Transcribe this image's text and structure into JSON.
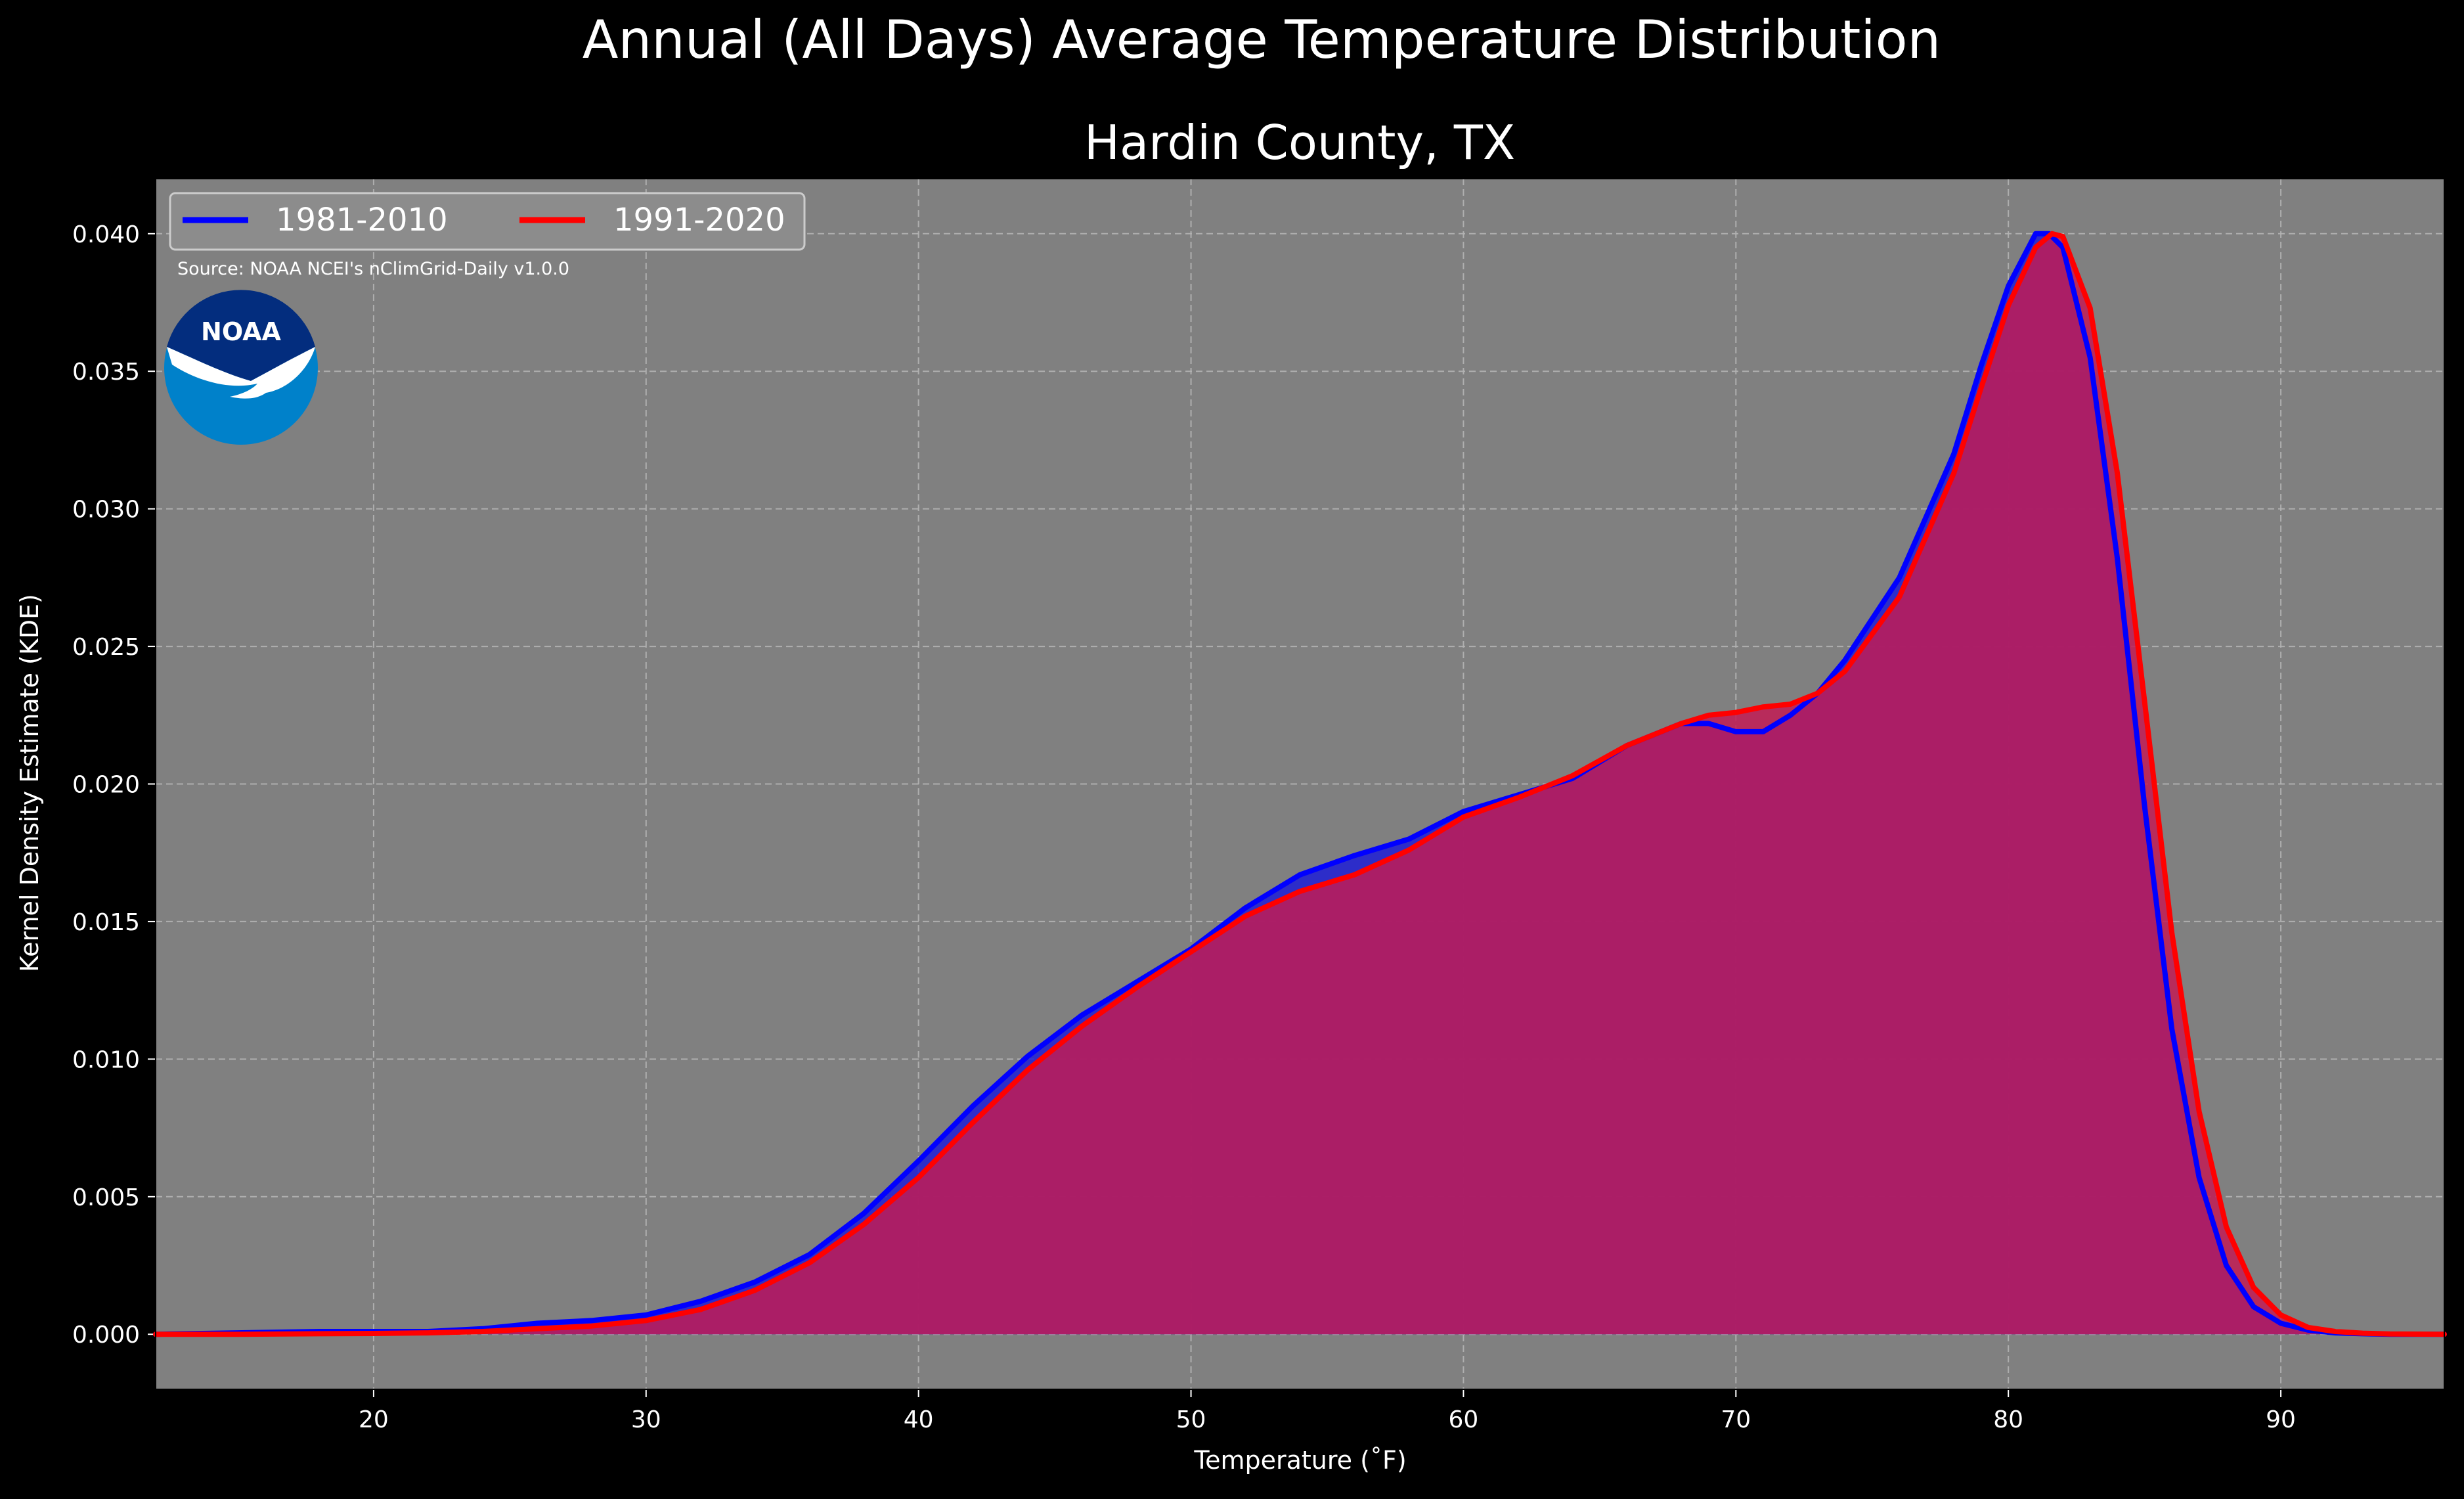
{
  "figure": {
    "suptitle": "Annual (All Days) Average Temperature Distribution",
    "background_color": "#000000",
    "plot_background_color": "#808080",
    "text_color": "#ffffff",
    "source_note": "Source: NOAA NCEI's nClimGrid-Daily v1.0.0",
    "logo": {
      "icon": "noaa-logo-icon",
      "text": "NOAA",
      "outer_color": "#0081CA",
      "inner_color": "#032D7E",
      "wing_color": "#ffffff"
    }
  },
  "chart_data": {
    "type": "area",
    "title": "Hardin County, TX",
    "xlabel": "Temperature ($^\\circ$F)",
    "xlabel_display": "Temperature (˚F)",
    "ylabel": "Kernel Density Estimate (KDE)",
    "xlim": [
      12,
      96
    ],
    "ylim": [
      -0.002,
      0.042
    ],
    "xticks": [
      20,
      30,
      40,
      50,
      60,
      70,
      80,
      90
    ],
    "xtick_labels": [
      "20",
      "30",
      "40",
      "50",
      "60",
      "70",
      "80",
      "90"
    ],
    "yticks": [
      0.0,
      0.005,
      0.01,
      0.015,
      0.02,
      0.025,
      0.03,
      0.035,
      0.04
    ],
    "ytick_labels": [
      "0.000",
      "0.005",
      "0.010",
      "0.015",
      "0.020",
      "0.025",
      "0.030",
      "0.035",
      "0.040"
    ],
    "grid": true,
    "legend": {
      "location": "top-left",
      "columns": 2
    },
    "series": [
      {
        "name": "1981-2010",
        "color": "#0000ff",
        "fill_color": "#1f1fd6",
        "x": [
          12,
          15,
          18,
          20,
          22,
          24,
          26,
          28,
          30,
          32,
          34,
          36,
          38,
          40,
          42,
          44,
          46,
          48,
          50,
          52,
          54,
          56,
          58,
          60,
          62,
          64,
          66,
          68,
          69,
          70,
          71,
          72,
          73,
          74,
          76,
          78,
          79,
          80,
          81,
          81.5,
          82,
          83,
          84,
          85,
          86,
          87,
          88,
          89,
          90,
          91,
          92,
          93,
          94,
          96
        ],
        "y": [
          0.0,
          5e-05,
          0.0001,
          0.0001,
          0.0001,
          0.0002,
          0.0004,
          0.0005,
          0.0007,
          0.0012,
          0.0019,
          0.0029,
          0.0044,
          0.0063,
          0.0083,
          0.0101,
          0.0116,
          0.0128,
          0.014,
          0.0155,
          0.0167,
          0.0174,
          0.018,
          0.019,
          0.0196,
          0.0202,
          0.0214,
          0.0222,
          0.0222,
          0.0219,
          0.0219,
          0.0225,
          0.0233,
          0.0245,
          0.0275,
          0.032,
          0.0352,
          0.0381,
          0.04,
          0.04,
          0.0395,
          0.0355,
          0.0282,
          0.0192,
          0.0111,
          0.0057,
          0.0025,
          0.001,
          0.0004,
          0.00015,
          5e-05,
          2e-05,
          0.0,
          0.0
        ]
      },
      {
        "name": "1991-2020",
        "color": "#ff0000",
        "fill_color": "#c21c55",
        "x": [
          12,
          15,
          18,
          20,
          22,
          24,
          26,
          28,
          30,
          32,
          34,
          36,
          38,
          40,
          42,
          44,
          46,
          48,
          50,
          52,
          54,
          56,
          58,
          60,
          62,
          64,
          66,
          68,
          69,
          70,
          71,
          72,
          73,
          74,
          76,
          78,
          79,
          80,
          81,
          81.6,
          82,
          83,
          84,
          85,
          86,
          87,
          88,
          89,
          90,
          91,
          92,
          93,
          94,
          96
        ],
        "y": [
          0.0,
          0.0,
          2e-05,
          3e-05,
          5e-05,
          0.0001,
          0.0002,
          0.0003,
          0.0005,
          0.0009,
          0.0016,
          0.0026,
          0.004,
          0.0057,
          0.0077,
          0.0096,
          0.0112,
          0.0126,
          0.0139,
          0.0152,
          0.0161,
          0.0167,
          0.0176,
          0.0188,
          0.0195,
          0.0203,
          0.0214,
          0.0222,
          0.0225,
          0.0226,
          0.0228,
          0.0229,
          0.0233,
          0.0241,
          0.0268,
          0.0313,
          0.0344,
          0.0374,
          0.0395,
          0.04,
          0.0399,
          0.0373,
          0.0313,
          0.023,
          0.0146,
          0.0081,
          0.0039,
          0.0017,
          0.0007,
          0.00025,
          0.0001,
          4e-05,
          1e-05,
          0.0
        ]
      }
    ]
  }
}
